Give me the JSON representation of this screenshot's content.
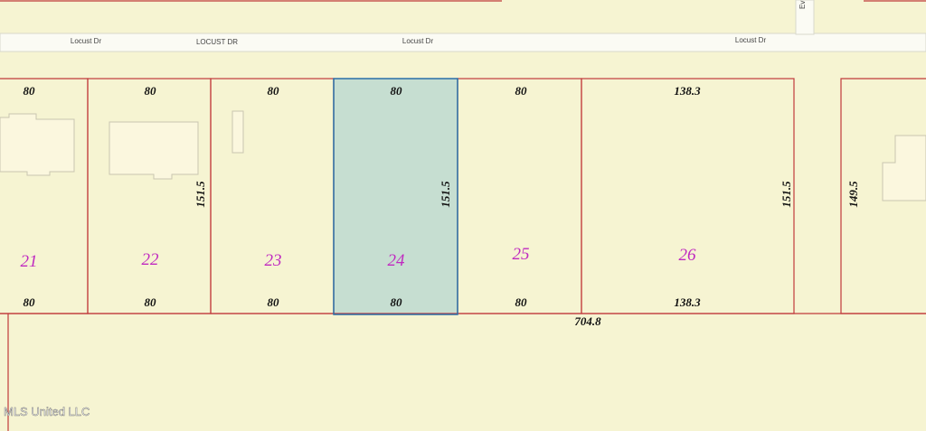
{
  "streets": [
    {
      "label": "Locust Dr"
    },
    {
      "label": "LOCUST DR"
    },
    {
      "label": "Locust Dr"
    },
    {
      "label": "Locust Dr"
    },
    {
      "label": "Ev"
    }
  ],
  "lots": [
    {
      "number": "21",
      "front": "80",
      "rear": "80"
    },
    {
      "number": "22",
      "front": "80",
      "rear": "80"
    },
    {
      "number": "23",
      "front": "80",
      "rear": "80"
    },
    {
      "number": "24",
      "front": "80",
      "rear": "80"
    },
    {
      "number": "25",
      "front": "80",
      "rear": "80"
    },
    {
      "number": "26",
      "front": "138.3",
      "rear": "138.3"
    }
  ],
  "depths": [
    "151.5",
    "151.5",
    "151.5",
    "149.5"
  ],
  "total": "704.8",
  "watermark": "MLS United LLC"
}
